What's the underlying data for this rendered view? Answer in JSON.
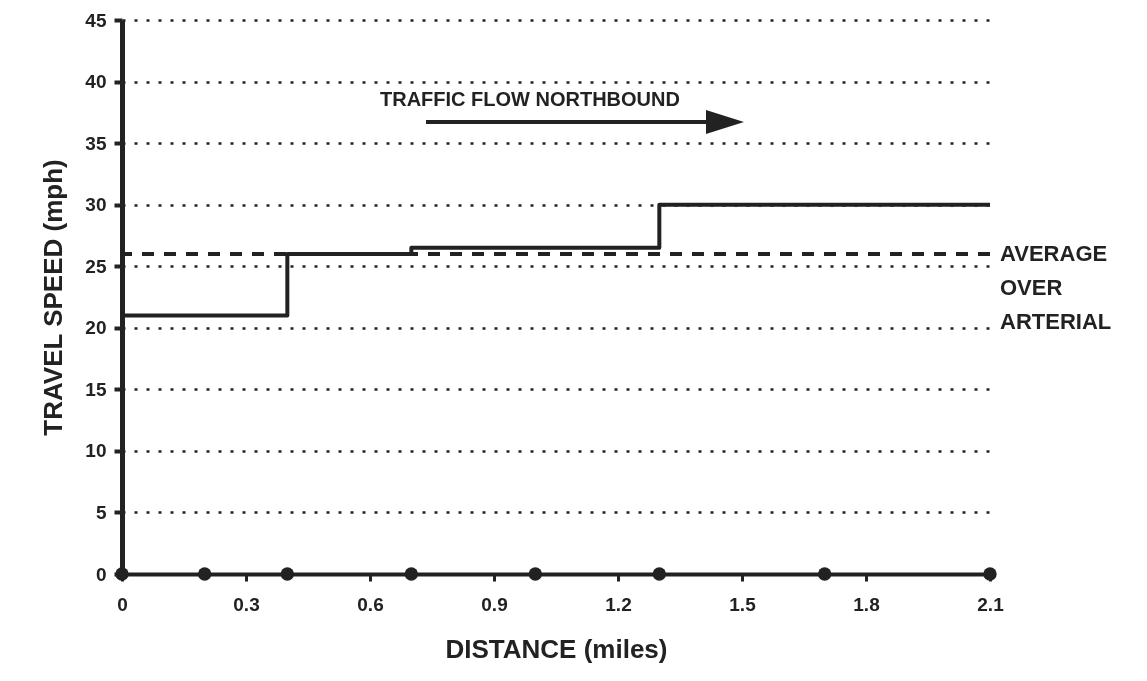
{
  "chart_data": {
    "type": "step",
    "xlabel": "DISTANCE (miles)",
    "ylabel": "TRAVEL SPEED (mph)",
    "annotations": [
      "TRAFFIC FLOW NORTHBOUND"
    ],
    "series": [
      {
        "color": "#222222",
        "x": [
          0,
          0.4,
          0.7,
          1.3,
          2.1
        ],
        "values": [
          21,
          26,
          26.5,
          30,
          30
        ]
      },
      {
        "type": "scatter",
        "color": "#222222",
        "marker": "circle",
        "x": [
          0,
          0.2,
          0.4,
          0.7,
          1.0,
          1.3,
          1.7,
          2.1
        ],
        "values": [
          0,
          0,
          0,
          0,
          0,
          0,
          0,
          0
        ]
      }
    ],
    "ref_lines": [
      {
        "axis": "y",
        "value": 26,
        "label": "AVERAGE OVER ARTERIAL",
        "color": "#222222",
        "line_style": "dashed"
      }
    ],
    "xlim": [
      0,
      2.1
    ],
    "xticks": [
      0,
      0.3,
      0.6,
      0.9,
      1.2,
      1.5,
      1.8,
      2.1
    ],
    "ylim": [
      0,
      45
    ],
    "yticks": [
      0,
      5,
      10,
      15,
      20,
      25,
      30,
      35,
      40,
      45
    ],
    "grid": "y"
  }
}
